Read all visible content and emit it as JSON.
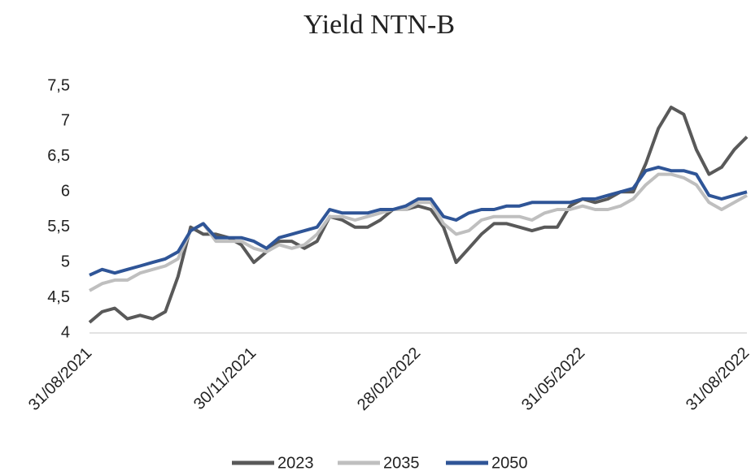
{
  "chart_data": {
    "type": "line",
    "title": "Yield NTN-B",
    "categories": [
      "31/08/2021",
      null,
      null,
      null,
      null,
      null,
      null,
      null,
      null,
      null,
      null,
      null,
      null,
      "30/11/2021",
      null,
      null,
      null,
      null,
      null,
      null,
      null,
      null,
      null,
      null,
      null,
      null,
      "28/02/2022",
      null,
      null,
      null,
      null,
      null,
      null,
      null,
      null,
      null,
      null,
      null,
      null,
      "31/05/2022",
      null,
      null,
      null,
      null,
      null,
      null,
      null,
      null,
      null,
      null,
      null,
      null,
      "31/08/2022"
    ],
    "series": [
      {
        "name": "2023",
        "color": "#595959",
        "values": [
          4.15,
          4.3,
          4.35,
          4.2,
          4.25,
          4.2,
          4.3,
          4.8,
          5.5,
          5.4,
          5.4,
          5.35,
          5.25,
          5.0,
          5.15,
          5.3,
          5.3,
          5.2,
          5.3,
          5.65,
          5.6,
          5.5,
          5.5,
          5.6,
          5.75,
          5.75,
          5.8,
          5.75,
          5.5,
          5.0,
          5.2,
          5.4,
          5.55,
          5.55,
          5.5,
          5.45,
          5.5,
          5.5,
          5.8,
          5.9,
          5.85,
          5.9,
          6.0,
          6.0,
          6.4,
          6.9,
          7.2,
          7.1,
          6.6,
          6.25,
          6.35,
          6.6,
          6.78
        ]
      },
      {
        "name": "2035",
        "color": "#bfbfbf",
        "values": [
          4.6,
          4.7,
          4.75,
          4.75,
          4.85,
          4.9,
          4.95,
          5.05,
          5.45,
          5.55,
          5.3,
          5.3,
          5.3,
          5.2,
          5.15,
          5.25,
          5.2,
          5.25,
          5.4,
          5.65,
          5.65,
          5.6,
          5.65,
          5.7,
          5.75,
          5.75,
          5.85,
          5.85,
          5.55,
          5.4,
          5.45,
          5.6,
          5.65,
          5.65,
          5.65,
          5.6,
          5.7,
          5.75,
          5.75,
          5.8,
          5.75,
          5.75,
          5.8,
          5.9,
          6.1,
          6.25,
          6.25,
          6.2,
          6.1,
          5.85,
          5.75,
          5.85,
          5.95
        ]
      },
      {
        "name": "2050",
        "color": "#2f5597",
        "values": [
          4.82,
          4.9,
          4.85,
          4.9,
          4.95,
          5.0,
          5.05,
          5.15,
          5.45,
          5.55,
          5.35,
          5.35,
          5.35,
          5.3,
          5.2,
          5.35,
          5.4,
          5.45,
          5.5,
          5.75,
          5.7,
          5.7,
          5.7,
          5.75,
          5.75,
          5.8,
          5.9,
          5.9,
          5.65,
          5.6,
          5.7,
          5.75,
          5.75,
          5.8,
          5.8,
          5.85,
          5.85,
          5.85,
          5.85,
          5.9,
          5.9,
          5.95,
          6.0,
          6.05,
          6.3,
          6.35,
          6.3,
          6.3,
          6.25,
          5.95,
          5.9,
          5.95,
          6.0
        ]
      }
    ],
    "ylim": [
      4,
      7.5
    ],
    "yticks": [
      4,
      {
        "value": 4.5,
        "label": "4,5"
      },
      5,
      {
        "value": 5.5,
        "label": "5,5"
      },
      6,
      {
        "value": 6.5,
        "label": "6,5"
      },
      7,
      {
        "value": 7.5,
        "label": "7,5"
      }
    ],
    "grid": false,
    "legend": "bottom"
  }
}
